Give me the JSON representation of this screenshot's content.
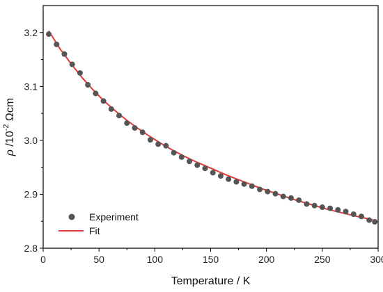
{
  "chart_data": {
    "type": "scatter",
    "xlabel": "Temperature / K",
    "ylabel": {
      "symbol": "ρ",
      "unit_prefix": " /10",
      "exponent": "-2",
      "unit": " Ωcm"
    },
    "xlim": [
      0,
      300
    ],
    "ylim": [
      2.8,
      3.25
    ],
    "x_ticks": [
      0,
      50,
      100,
      150,
      200,
      250,
      300
    ],
    "y_ticks": [
      2.8,
      2.9,
      3.0,
      3.1,
      3.2
    ],
    "y_tick_labels": [
      "2.8",
      "2.9",
      "3.0",
      "3.1",
      "3.2"
    ],
    "x_tick_labels": [
      "0",
      "50",
      "100",
      "150",
      "200",
      "250",
      "300"
    ],
    "grid": false,
    "legend_position": "bottom-left",
    "series": [
      {
        "name": "Experiment",
        "kind": "scatter",
        "color": "#555555",
        "x": [
          5,
          12,
          19,
          26,
          33,
          40,
          47,
          54,
          61,
          68,
          75,
          82,
          89,
          96,
          103,
          110,
          117,
          124,
          131,
          138,
          145,
          152,
          159,
          166,
          173,
          180,
          187,
          194,
          201,
          208,
          215,
          222,
          229,
          236,
          243,
          250,
          257,
          264,
          271,
          278,
          285,
          292,
          297
        ],
        "y": [
          3.197,
          3.178,
          3.16,
          3.141,
          3.125,
          3.103,
          3.087,
          3.073,
          3.058,
          3.046,
          3.032,
          3.023,
          3.015,
          3.001,
          2.993,
          2.99,
          2.977,
          2.969,
          2.961,
          2.954,
          2.948,
          2.94,
          2.934,
          2.928,
          2.923,
          2.919,
          2.915,
          2.909,
          2.905,
          2.901,
          2.896,
          2.893,
          2.889,
          2.882,
          2.879,
          2.876,
          2.874,
          2.871,
          2.868,
          2.863,
          2.859,
          2.852,
          2.849
        ]
      },
      {
        "name": "Fit",
        "kind": "line",
        "color": "#e03a3a",
        "x": [
          5,
          15,
          25,
          35,
          45,
          55,
          65,
          75,
          85,
          95,
          105,
          115,
          125,
          135,
          145,
          155,
          165,
          175,
          185,
          195,
          205,
          215,
          225,
          235,
          245,
          255,
          265,
          275,
          285,
          295
        ],
        "y": [
          3.203,
          3.17,
          3.142,
          3.116,
          3.093,
          3.072,
          3.054,
          3.037,
          3.022,
          3.008,
          2.995,
          2.983,
          2.972,
          2.962,
          2.953,
          2.944,
          2.935,
          2.927,
          2.919,
          2.911,
          2.904,
          2.897,
          2.89,
          2.884,
          2.878,
          2.872,
          2.867,
          2.862,
          2.857,
          2.853
        ]
      }
    ]
  }
}
